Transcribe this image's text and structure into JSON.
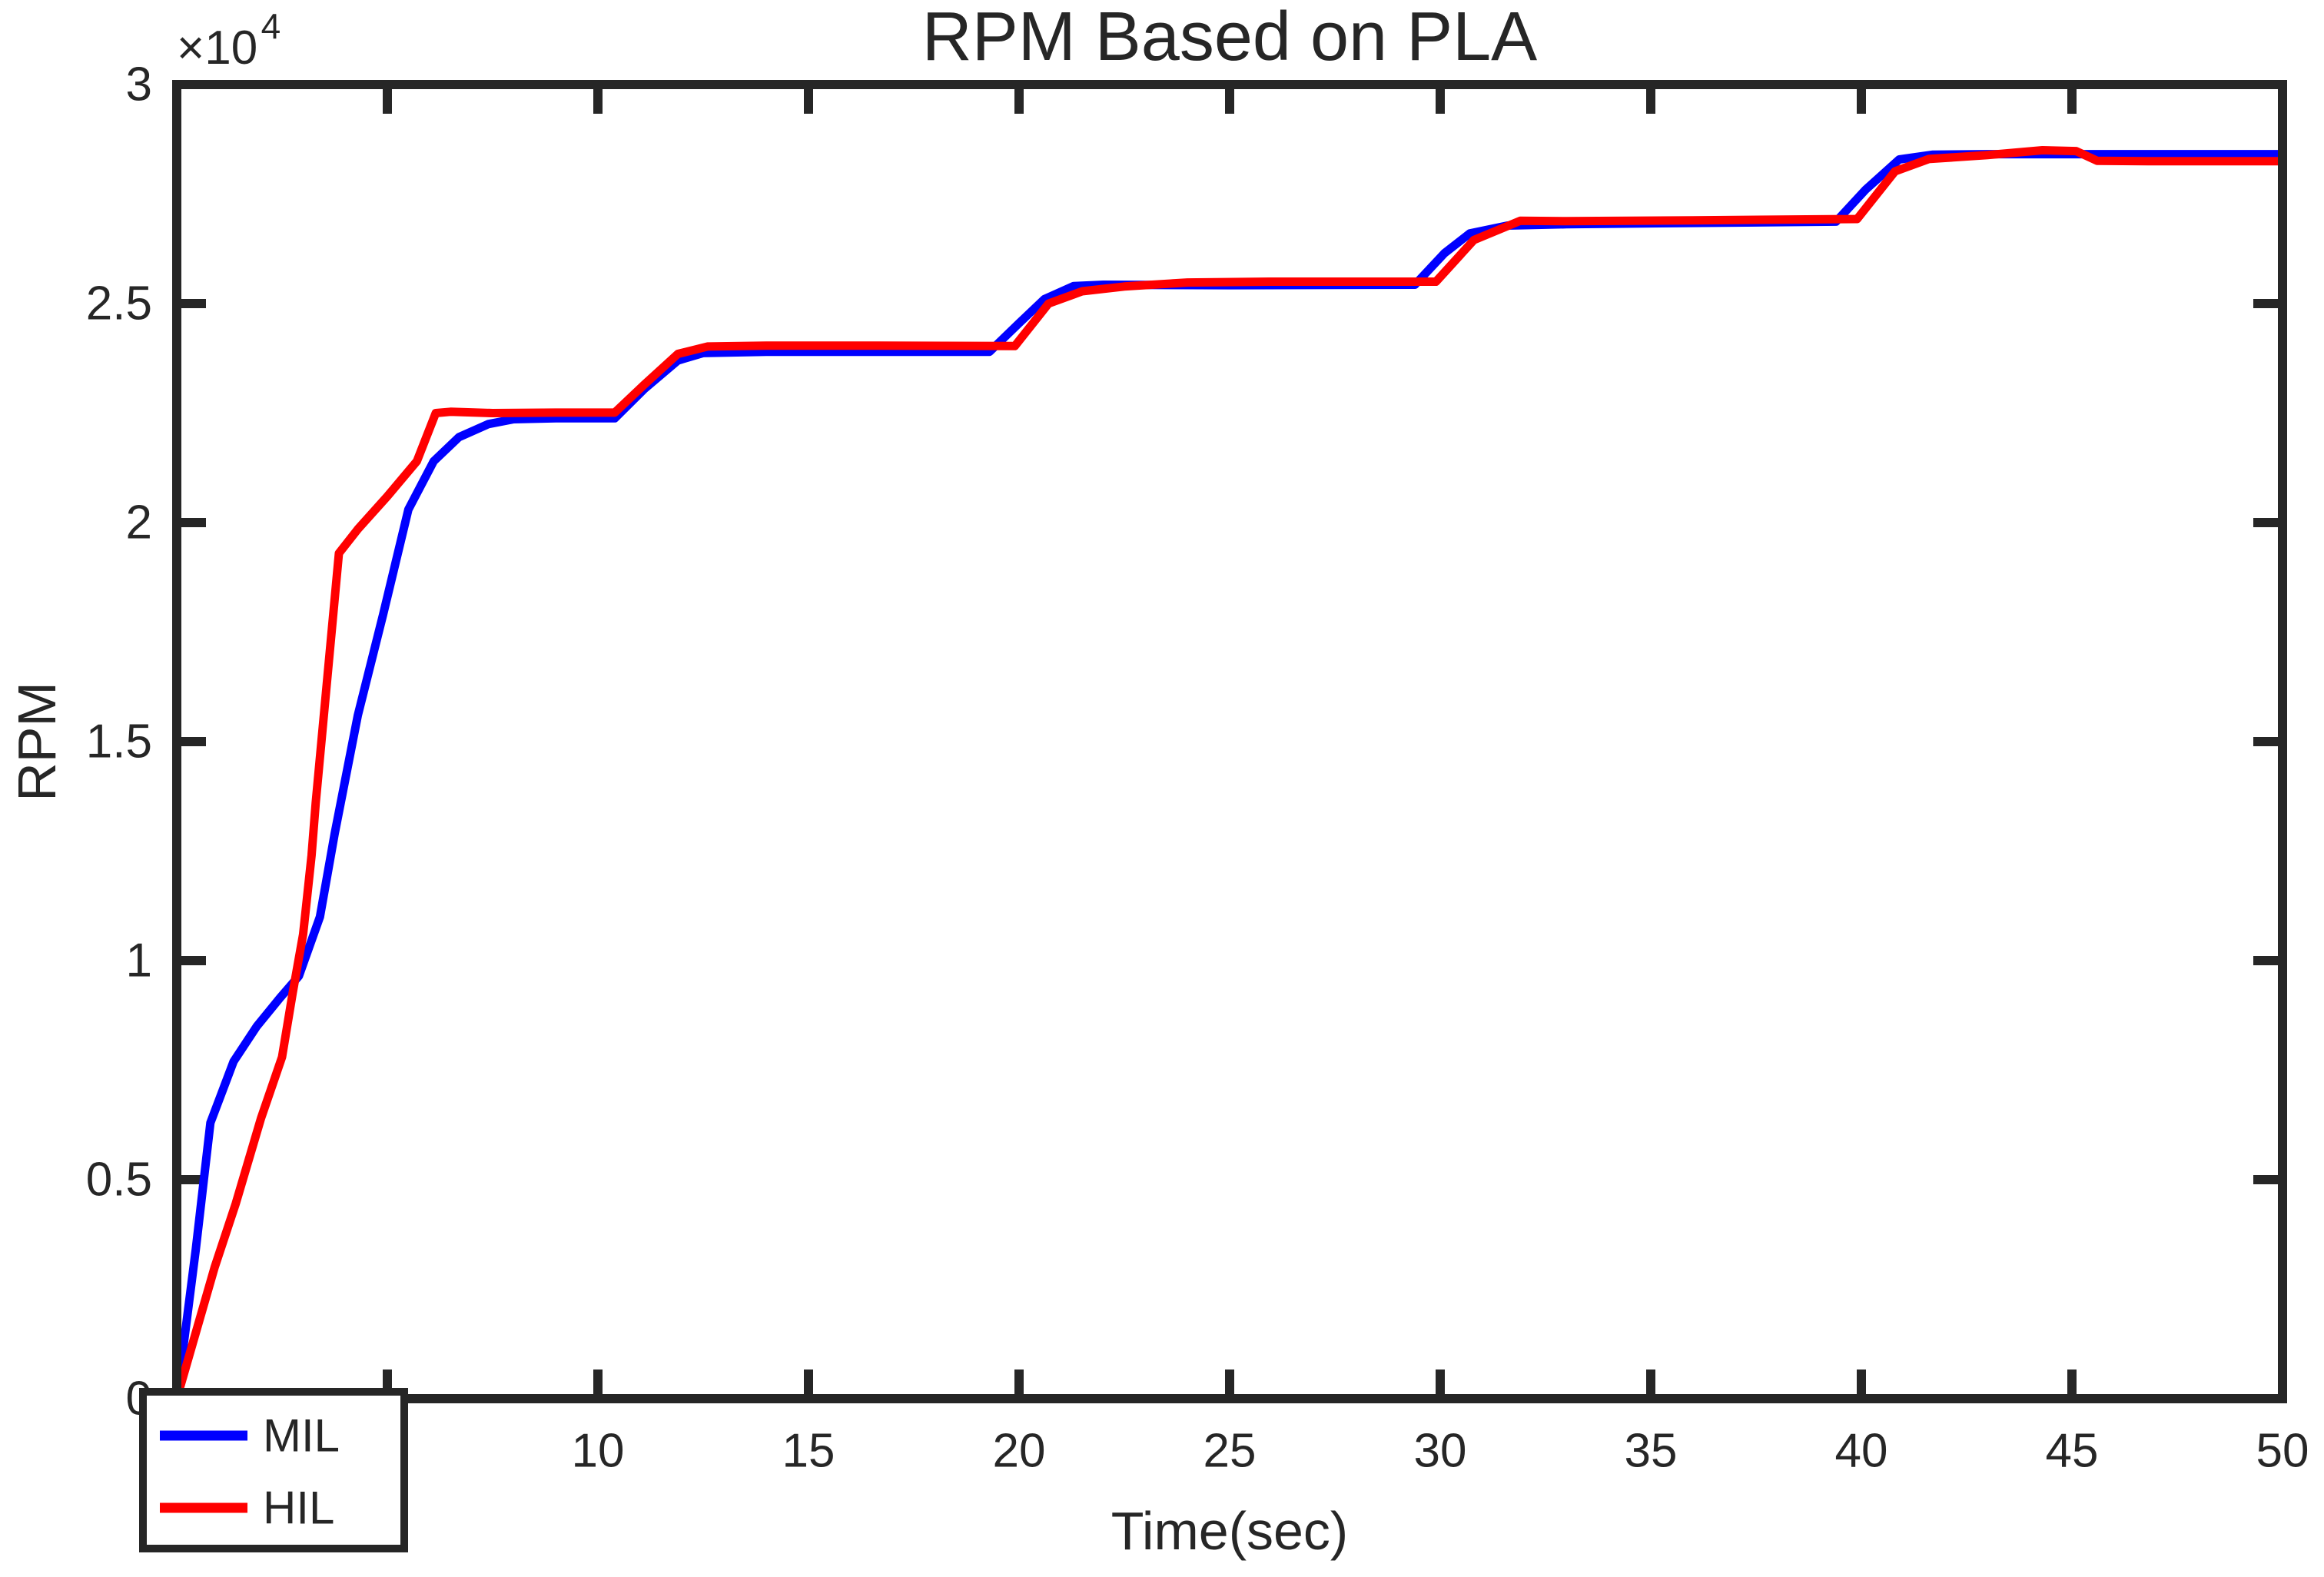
{
  "figure": {
    "title": "RPM Based on PLA",
    "xlabel": "Time(sec)",
    "ylabel": "RPM",
    "y_exponent_base": "×10",
    "y_exponent_power": "4"
  },
  "style": {
    "axis_color": "#262626",
    "background": "#ffffff",
    "mil_color": "#0000ff",
    "hil_color": "#ff0000"
  },
  "chart_data": {
    "type": "line",
    "title": "RPM Based on PLA",
    "xlabel": "Time(sec)",
    "ylabel": "RPM",
    "y_scale_note": "×10^4",
    "xlim": [
      0,
      50
    ],
    "ylim": [
      0,
      30000
    ],
    "grid": false,
    "box": true,
    "xticks": [
      0,
      5,
      10,
      15,
      20,
      25,
      30,
      35,
      40,
      45,
      50
    ],
    "xtick_labels_visible": [
      "10",
      "15",
      "20",
      "25",
      "30",
      "35",
      "40",
      "45",
      "50"
    ],
    "yticks": [
      0,
      5000,
      10000,
      15000,
      20000,
      25000,
      30000
    ],
    "ytick_labels": [
      "0",
      "0.5",
      "1",
      "1.5",
      "2",
      "2.5",
      "3"
    ],
    "legend": {
      "position": "bottom-left",
      "entries": [
        {
          "label": "MIL",
          "color": "#0000ff"
        },
        {
          "label": "HIL",
          "color": "#ff0000"
        }
      ]
    },
    "series": [
      {
        "name": "MIL",
        "color": "#0000ff",
        "points": [
          [
            0,
            0
          ],
          [
            0.45,
            3400
          ],
          [
            0.8,
            6300
          ],
          [
            1.35,
            7700
          ],
          [
            1.9,
            8500
          ],
          [
            2.45,
            9150
          ],
          [
            2.9,
            9650
          ],
          [
            3.4,
            11000
          ],
          [
            3.75,
            12900
          ],
          [
            4.3,
            15600
          ],
          [
            4.9,
            17900
          ],
          [
            5.5,
            20300
          ],
          [
            6.1,
            21400
          ],
          [
            6.7,
            21950
          ],
          [
            7.4,
            22250
          ],
          [
            8,
            22360
          ],
          [
            9,
            22380
          ],
          [
            10.4,
            22380
          ],
          [
            11.1,
            23050
          ],
          [
            11.9,
            23700
          ],
          [
            12.5,
            23870
          ],
          [
            14,
            23900
          ],
          [
            19.3,
            23900
          ],
          [
            20,
            24550
          ],
          [
            20.6,
            25100
          ],
          [
            21.3,
            25400
          ],
          [
            22,
            25430
          ],
          [
            25,
            25420
          ],
          [
            29.4,
            25430
          ],
          [
            30.1,
            26150
          ],
          [
            30.7,
            26600
          ],
          [
            31.6,
            26780
          ],
          [
            33,
            26810
          ],
          [
            36,
            26840
          ],
          [
            39.4,
            26870
          ],
          [
            40.1,
            27600
          ],
          [
            40.9,
            28290
          ],
          [
            41.7,
            28400
          ],
          [
            43,
            28410
          ],
          [
            46,
            28410
          ],
          [
            50,
            28410
          ]
        ]
      },
      {
        "name": "HIL",
        "color": "#ff0000",
        "points": [
          [
            0,
            0
          ],
          [
            0.9,
            3000
          ],
          [
            1.4,
            4450
          ],
          [
            2.0,
            6400
          ],
          [
            2.5,
            7800
          ],
          [
            2.75,
            9250
          ],
          [
            3.0,
            10600
          ],
          [
            3.2,
            12400
          ],
          [
            3.3,
            13600
          ],
          [
            3.85,
            19300
          ],
          [
            4.3,
            19850
          ],
          [
            5.0,
            20600
          ],
          [
            5.7,
            21400
          ],
          [
            6.15,
            22500
          ],
          [
            6.5,
            22530
          ],
          [
            7.5,
            22500
          ],
          [
            9,
            22510
          ],
          [
            10.4,
            22510
          ],
          [
            11.1,
            23150
          ],
          [
            11.9,
            23850
          ],
          [
            12.6,
            24020
          ],
          [
            14,
            24040
          ],
          [
            16,
            24040
          ],
          [
            19.9,
            24030
          ],
          [
            20.7,
            25000
          ],
          [
            21.5,
            25280
          ],
          [
            22.5,
            25390
          ],
          [
            24,
            25480
          ],
          [
            26,
            25500
          ],
          [
            29.9,
            25500
          ],
          [
            30.8,
            26450
          ],
          [
            31.9,
            26890
          ],
          [
            33,
            26880
          ],
          [
            36,
            26900
          ],
          [
            39.9,
            26930
          ],
          [
            40.8,
            28020
          ],
          [
            41.6,
            28300
          ],
          [
            43,
            28390
          ],
          [
            44.3,
            28500
          ],
          [
            45.1,
            28480
          ],
          [
            45.6,
            28260
          ],
          [
            47,
            28250
          ],
          [
            50,
            28250
          ]
        ]
      }
    ]
  }
}
